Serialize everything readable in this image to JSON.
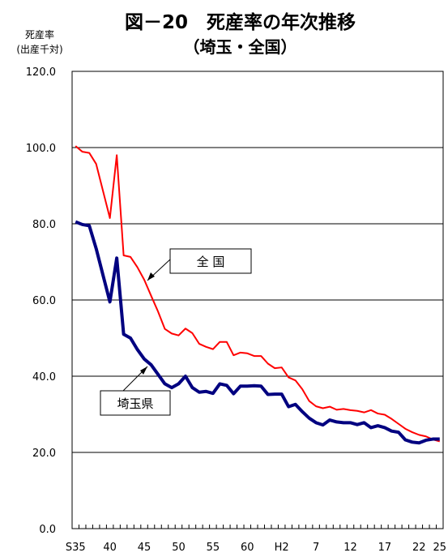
{
  "chart_data": {
    "type": "line",
    "title": "図－20　死産率の年次推移",
    "subtitle": "（埼玉・全国）",
    "ylabel_line1": "死産率",
    "ylabel_line2": "(出産千対)",
    "ylim": [
      0,
      120
    ],
    "yticks": [
      "0.0",
      "20.0",
      "40.0",
      "60.0",
      "80.0",
      "100.0",
      "120.0"
    ],
    "xtick_labels": [
      "S35",
      "40",
      "45",
      "50",
      "55",
      "60",
      "H2",
      "7",
      "12",
      "17",
      "22",
      "25"
    ],
    "x_label_index": [
      0,
      5,
      10,
      15,
      20,
      25,
      30,
      35,
      40,
      45,
      50,
      53
    ],
    "grid": "horizontal",
    "series": [
      {
        "name": "全 国",
        "color": "#ff0000",
        "values": [
          100.4,
          98.9,
          98.6,
          95.7,
          88.6,
          81.5,
          98.0,
          71.7,
          71.3,
          68.6,
          65.3,
          61.1,
          57.0,
          52.4,
          51.2,
          50.7,
          52.5,
          51.3,
          48.5,
          47.7,
          47.1,
          49.0,
          49.0,
          45.5,
          46.2,
          46.0,
          45.3,
          45.3,
          43.3,
          42.1,
          42.3,
          39.7,
          38.9,
          36.6,
          33.5,
          32.1,
          31.6,
          32.0,
          31.2,
          31.4,
          31.1,
          30.9,
          30.5,
          31.1,
          30.2,
          29.9,
          28.8,
          27.5,
          26.2,
          25.3,
          24.6,
          24.2,
          23.4,
          22.9
        ]
      },
      {
        "name": "埼玉県",
        "color": "#000080",
        "values": [
          80.5,
          79.8,
          79.5,
          73.5,
          66.5,
          59.5,
          71.0,
          51.0,
          50.0,
          47.0,
          44.5,
          43.0,
          40.5,
          38.0,
          37.0,
          38.0,
          40.0,
          37.0,
          35.8,
          36.0,
          35.5,
          38.0,
          37.6,
          35.4,
          37.4,
          37.4,
          37.5,
          37.4,
          35.2,
          35.3,
          35.3,
          32.0,
          32.6,
          30.7,
          29.0,
          27.8,
          27.2,
          28.5,
          28.0,
          27.8,
          27.8,
          27.3,
          27.8,
          26.5,
          27.0,
          26.5,
          25.6,
          25.3,
          23.3,
          22.7,
          22.5,
          23.2,
          23.5,
          23.5
        ]
      }
    ],
    "annotations": [
      {
        "text": "全 国"
      },
      {
        "text": "埼玉県"
      }
    ]
  }
}
